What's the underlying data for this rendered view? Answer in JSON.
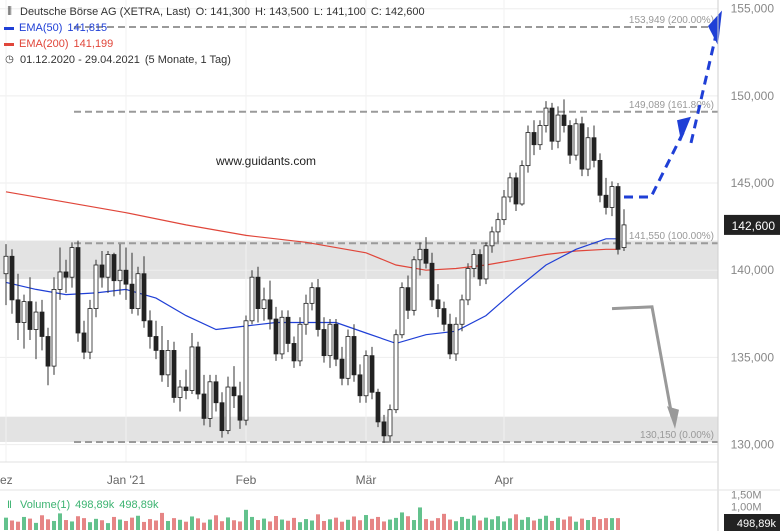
{
  "header": {
    "instrument": "Deutsche Börse AG (XETRA, Last)",
    "open": "O: 141,300",
    "high": "H: 143,500",
    "low": "L: 141,100",
    "close": "C: 142,600",
    "ema50_label": "EMA(50)",
    "ema50_value": "141,815",
    "ema200_label": "EMA(200)",
    "ema200_value": "141,199",
    "range": "01.12.2020 - 29.04.2021",
    "period": "(5 Monate, 1 Tag)"
  },
  "watermark": "www.guidants.com",
  "colors": {
    "up": "#3cb371",
    "down": "#e06666",
    "ema50": "#1f3fd6",
    "ema200": "#e0463a",
    "arrow_up": "#1f3fd6",
    "arrow_down": "#999999",
    "zone": "#e3e3e3",
    "price_tag": "#222222"
  },
  "volume_legend": {
    "label": "Volume(1)",
    "value1": "498,89k",
    "value2": "498,89k"
  },
  "chart_data": {
    "type": "candlestick",
    "ylim": [
      129,
      155.5
    ],
    "y_ticks": [
      "155,000",
      "150,000",
      "145,000",
      "140,000",
      "135,000",
      "130,000"
    ],
    "y_tick_values": [
      155,
      150,
      145,
      140,
      135,
      130
    ],
    "x_ticks": [
      {
        "label": "ez",
        "index": 0
      },
      {
        "label": "Jan '21",
        "index": 20
      },
      {
        "label": "Feb",
        "index": 40
      },
      {
        "label": "Mär",
        "index": 60
      },
      {
        "label": "Apr",
        "index": 83
      }
    ],
    "price_tag": "142,600",
    "fib_levels": [
      {
        "value": 153.949,
        "label": "153,949 (200.00%)"
      },
      {
        "value": 149.089,
        "label": "149,089 (161.80%)"
      },
      {
        "value": 141.55,
        "label": "141,550 (100.00%)"
      },
      {
        "value": 130.15,
        "label": "130,150 (0.00%)"
      }
    ],
    "zones": [
      [
        139.5,
        141.7
      ],
      [
        130.15,
        131.6
      ]
    ],
    "candles": [
      [
        139.8,
        141.5,
        138.0,
        140.8
      ],
      [
        140.8,
        141.2,
        137.5,
        138.3
      ],
      [
        138.3,
        139.8,
        136.0,
        137.0
      ],
      [
        137.0,
        138.6,
        135.5,
        138.2
      ],
      [
        138.2,
        139.6,
        136.0,
        136.6
      ],
      [
        136.6,
        138.2,
        134.9,
        137.6
      ],
      [
        137.6,
        138.3,
        135.4,
        136.2
      ],
      [
        136.2,
        136.7,
        133.4,
        134.5
      ],
      [
        134.5,
        139.6,
        134.0,
        138.9
      ],
      [
        138.9,
        141.3,
        138.3,
        139.9
      ],
      [
        139.9,
        140.6,
        138.7,
        139.6
      ],
      [
        139.6,
        141.6,
        139.0,
        141.3
      ],
      [
        141.3,
        141.7,
        135.9,
        136.4
      ],
      [
        136.4,
        137.1,
        134.9,
        135.3
      ],
      [
        135.3,
        138.3,
        134.9,
        137.8
      ],
      [
        137.8,
        140.6,
        137.3,
        140.3
      ],
      [
        140.3,
        141.1,
        139.0,
        139.6
      ],
      [
        139.6,
        141.1,
        138.7,
        140.9
      ],
      [
        140.9,
        141.0,
        138.5,
        139.4
      ],
      [
        139.4,
        141.5,
        138.6,
        140.0
      ],
      [
        140.0,
        141.3,
        138.3,
        139.2
      ],
      [
        139.2,
        141.0,
        137.5,
        137.8
      ],
      [
        137.8,
        140.2,
        137.4,
        139.8
      ],
      [
        139.8,
        140.8,
        136.7,
        137.1
      ],
      [
        137.1,
        137.7,
        135.5,
        136.2
      ],
      [
        136.2,
        137.1,
        134.9,
        135.4
      ],
      [
        135.4,
        136.8,
        133.6,
        134.0
      ],
      [
        134.0,
        136.0,
        133.3,
        135.4
      ],
      [
        135.4,
        135.9,
        132.4,
        132.7
      ],
      [
        132.7,
        133.7,
        131.9,
        133.3
      ],
      [
        133.3,
        134.3,
        132.6,
        133.1
      ],
      [
        133.1,
        136.4,
        132.9,
        135.6
      ],
      [
        135.6,
        135.9,
        132.6,
        132.9
      ],
      [
        132.9,
        134.0,
        131.1,
        131.5
      ],
      [
        131.5,
        134.0,
        131.0,
        133.6
      ],
      [
        133.6,
        134.0,
        131.9,
        132.4
      ],
      [
        132.4,
        133.0,
        130.4,
        130.8
      ],
      [
        130.8,
        133.9,
        130.6,
        133.3
      ],
      [
        133.3,
        134.5,
        132.1,
        132.8
      ],
      [
        132.8,
        133.6,
        130.9,
        131.4
      ],
      [
        131.4,
        137.4,
        131.1,
        137.1
      ],
      [
        137.1,
        140.0,
        136.9,
        139.6
      ],
      [
        139.6,
        140.2,
        137.0,
        137.8
      ],
      [
        137.8,
        139.0,
        137.1,
        138.3
      ],
      [
        138.3,
        139.4,
        136.6,
        137.2
      ],
      [
        137.2,
        137.9,
        134.8,
        135.2
      ],
      [
        135.2,
        137.7,
        134.9,
        137.3
      ],
      [
        137.3,
        137.7,
        135.3,
        135.8
      ],
      [
        135.8,
        136.2,
        134.4,
        134.8
      ],
      [
        134.8,
        137.3,
        134.5,
        136.9
      ],
      [
        136.9,
        138.6,
        136.3,
        138.1
      ],
      [
        138.1,
        139.3,
        137.7,
        139.0
      ],
      [
        139.0,
        139.5,
        136.2,
        136.6
      ],
      [
        136.6,
        137.3,
        134.7,
        135.1
      ],
      [
        135.1,
        137.2,
        134.4,
        136.9
      ],
      [
        136.9,
        137.2,
        134.5,
        134.9
      ],
      [
        134.9,
        135.6,
        133.4,
        133.8
      ],
      [
        133.8,
        136.6,
        133.4,
        136.2
      ],
      [
        136.2,
        136.9,
        133.6,
        134.0
      ],
      [
        134.0,
        134.6,
        132.4,
        132.8
      ],
      [
        132.8,
        135.4,
        132.4,
        135.1
      ],
      [
        135.1,
        135.6,
        132.6,
        133.0
      ],
      [
        133.0,
        133.2,
        131.0,
        131.3
      ],
      [
        131.3,
        131.7,
        130.1,
        130.5
      ],
      [
        130.5,
        132.3,
        130.1,
        132.0
      ],
      [
        132.0,
        136.6,
        131.8,
        136.3
      ],
      [
        136.3,
        139.3,
        136.1,
        139.0
      ],
      [
        139.0,
        139.7,
        137.2,
        137.7
      ],
      [
        137.7,
        140.8,
        137.4,
        140.6
      ],
      [
        140.6,
        141.6,
        139.7,
        141.2
      ],
      [
        141.2,
        141.9,
        140.1,
        140.4
      ],
      [
        140.4,
        141.0,
        137.9,
        138.3
      ],
      [
        138.3,
        139.2,
        137.3,
        137.8
      ],
      [
        137.8,
        138.2,
        136.5,
        136.9
      ],
      [
        136.9,
        137.5,
        134.9,
        135.2
      ],
      [
        135.2,
        137.3,
        134.8,
        136.9
      ],
      [
        136.9,
        138.6,
        136.5,
        138.3
      ],
      [
        138.3,
        140.4,
        138.0,
        140.1
      ],
      [
        140.1,
        141.2,
        139.6,
        140.9
      ],
      [
        140.9,
        141.2,
        139.1,
        139.5
      ],
      [
        139.5,
        141.6,
        139.2,
        141.4
      ],
      [
        141.4,
        142.5,
        141.0,
        142.2
      ],
      [
        142.2,
        143.3,
        141.6,
        142.9
      ],
      [
        142.9,
        144.6,
        142.6,
        144.2
      ],
      [
        144.2,
        145.6,
        143.9,
        145.3
      ],
      [
        145.3,
        145.6,
        143.4,
        143.8
      ],
      [
        143.8,
        146.3,
        143.7,
        146.0
      ],
      [
        146.0,
        148.3,
        145.6,
        147.9
      ],
      [
        147.9,
        148.6,
        146.6,
        147.2
      ],
      [
        147.2,
        148.6,
        146.9,
        148.3
      ],
      [
        148.3,
        149.7,
        147.9,
        149.3
      ],
      [
        149.3,
        149.6,
        146.9,
        147.4
      ],
      [
        147.4,
        149.4,
        147.0,
        148.9
      ],
      [
        148.9,
        149.8,
        147.9,
        148.3
      ],
      [
        148.3,
        148.6,
        146.1,
        146.6
      ],
      [
        146.6,
        148.7,
        146.3,
        148.4
      ],
      [
        148.4,
        148.8,
        145.4,
        145.8
      ],
      [
        145.8,
        148.2,
        145.4,
        147.6
      ],
      [
        147.6,
        148.3,
        145.9,
        146.3
      ],
      [
        146.3,
        146.7,
        143.9,
        144.3
      ],
      [
        144.3,
        145.3,
        143.2,
        143.6
      ],
      [
        143.6,
        145.1,
        143.1,
        144.8
      ],
      [
        144.8,
        145.0,
        140.9,
        141.2
      ],
      [
        141.3,
        143.5,
        141.1,
        142.6
      ]
    ],
    "ema50": [
      [
        0,
        139.3
      ],
      [
        5,
        138.9
      ],
      [
        10,
        138.6
      ],
      [
        15,
        138.7
      ],
      [
        20,
        138.9
      ],
      [
        25,
        138.4
      ],
      [
        30,
        137.4
      ],
      [
        35,
        136.6
      ],
      [
        40,
        136.8
      ],
      [
        45,
        137.0
      ],
      [
        50,
        137.0
      ],
      [
        55,
        137.0
      ],
      [
        60,
        136.4
      ],
      [
        65,
        135.8
      ],
      [
        70,
        136.3
      ],
      [
        75,
        136.5
      ],
      [
        80,
        137.4
      ],
      [
        85,
        138.9
      ],
      [
        90,
        140.3
      ],
      [
        95,
        141.2
      ],
      [
        100,
        141.8
      ],
      [
        102,
        141.8
      ]
    ],
    "ema200": [
      [
        0,
        144.5
      ],
      [
        10,
        143.9
      ],
      [
        20,
        143.3
      ],
      [
        30,
        142.6
      ],
      [
        40,
        142.0
      ],
      [
        50,
        141.6
      ],
      [
        60,
        141.0
      ],
      [
        65,
        140.3
      ],
      [
        70,
        140.0
      ],
      [
        75,
        140.1
      ],
      [
        80,
        140.3
      ],
      [
        85,
        140.6
      ],
      [
        90,
        140.9
      ],
      [
        95,
        141.1
      ],
      [
        100,
        141.2
      ],
      [
        102,
        141.2
      ]
    ],
    "volume_ticks": [
      "1,50M",
      "1,00M"
    ],
    "volume_tick_values": [
      1.5,
      1.0
    ],
    "volume_value_tag": "498,89k",
    "volume": [
      0.52,
      0.4,
      0.35,
      0.55,
      0.48,
      0.3,
      0.62,
      0.45,
      0.38,
      0.7,
      0.42,
      0.36,
      0.58,
      0.5,
      0.33,
      0.47,
      0.41,
      0.29,
      0.55,
      0.44,
      0.38,
      0.52,
      0.6,
      0.34,
      0.46,
      0.4,
      0.72,
      0.38,
      0.5,
      0.43,
      0.35,
      0.57,
      0.49,
      0.31,
      0.44,
      0.62,
      0.37,
      0.53,
      0.41,
      0.36,
      0.85,
      0.55,
      0.42,
      0.48,
      0.36,
      0.59,
      0.44,
      0.39,
      0.51,
      0.33,
      0.46,
      0.4,
      0.66,
      0.38,
      0.45,
      0.52,
      0.35,
      0.43,
      0.57,
      0.41,
      0.63,
      0.47,
      0.55,
      0.36,
      0.44,
      0.51,
      0.74,
      0.58,
      0.42,
      0.95,
      0.46,
      0.39,
      0.5,
      0.68,
      0.44,
      0.37,
      0.55,
      0.47,
      0.61,
      0.4,
      0.52,
      0.45,
      0.58,
      0.36,
      0.49,
      0.66,
      0.43,
      0.54,
      0.4,
      0.47,
      0.6,
      0.38,
      0.51,
      0.44,
      0.57,
      0.35,
      0.48,
      0.42,
      0.55,
      0.46,
      0.5,
      0.5,
      0.5
    ],
    "volume_max": 1.6
  }
}
